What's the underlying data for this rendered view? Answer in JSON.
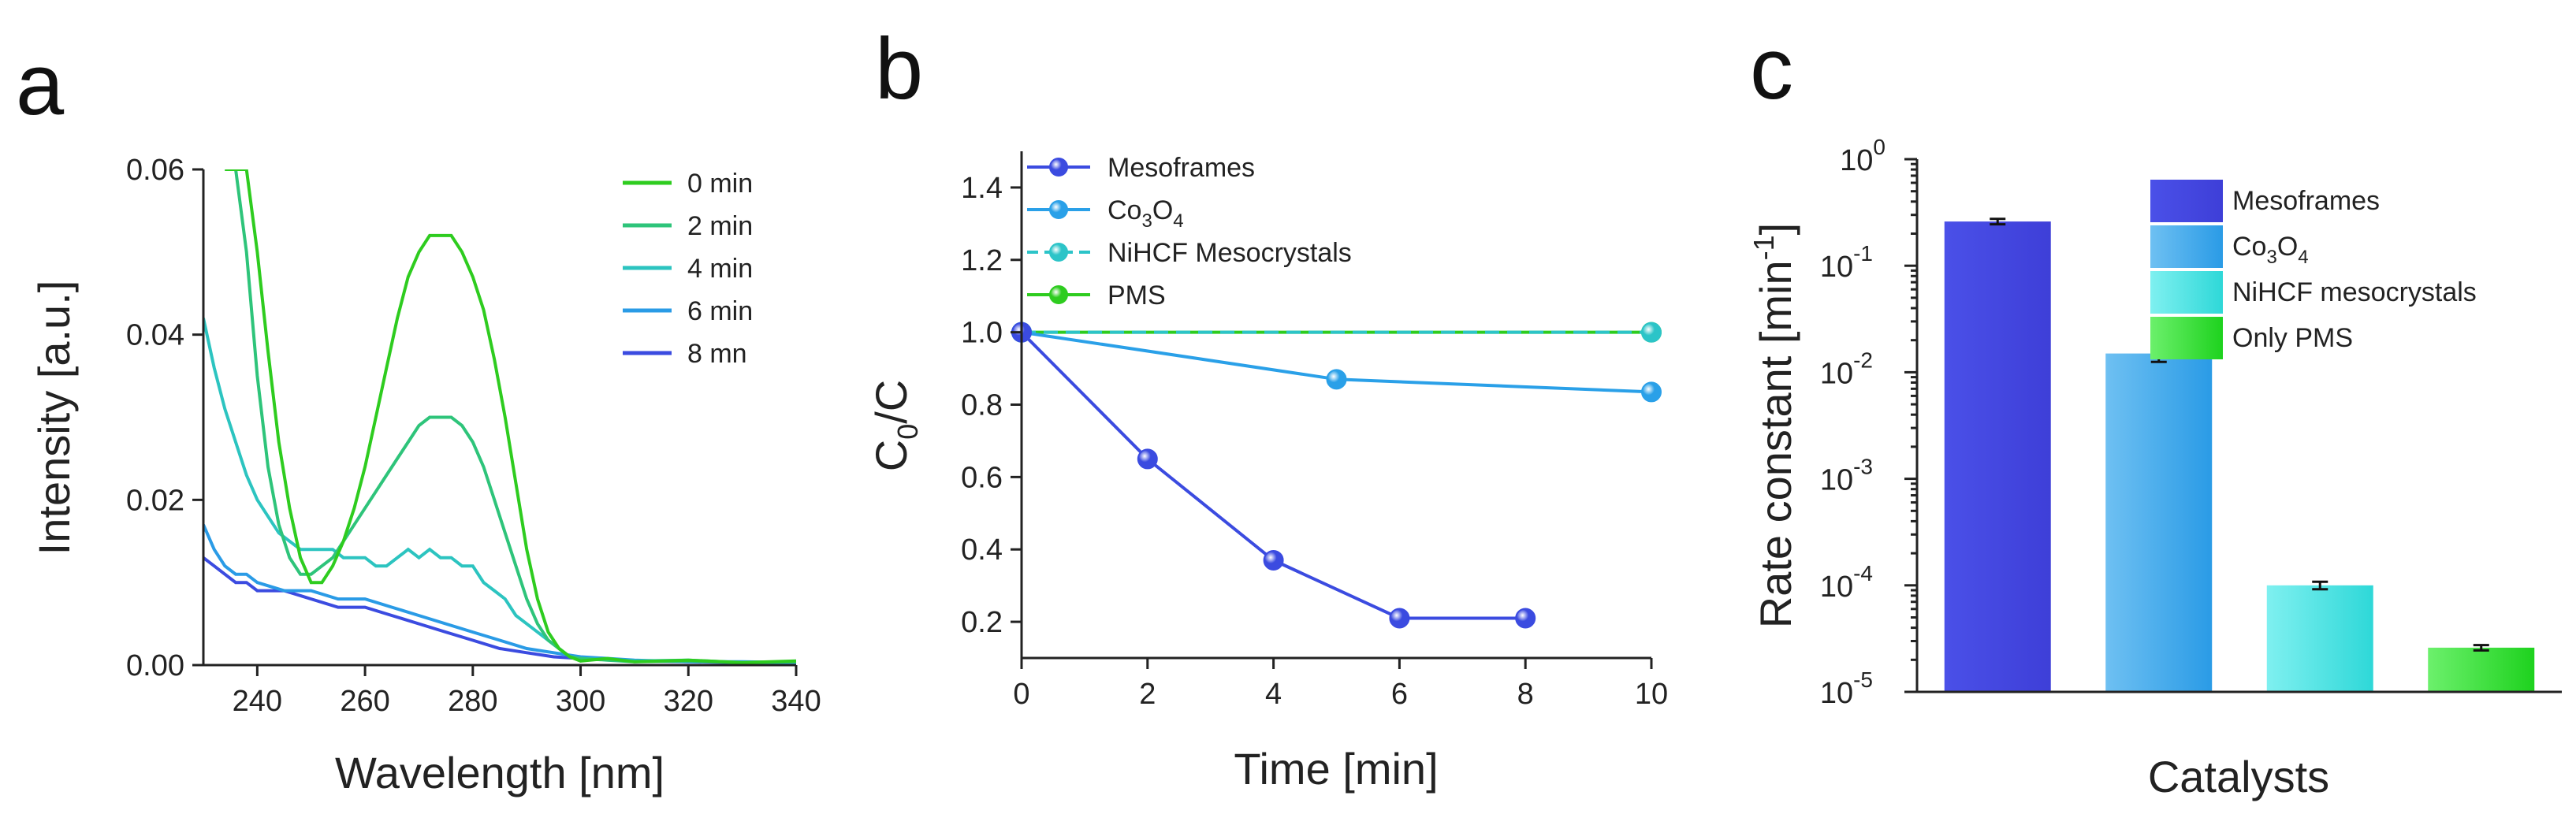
{
  "panel_labels": [
    "a",
    "b",
    "c"
  ],
  "chart_data": [
    {
      "type": "line",
      "panel": "a",
      "title": "",
      "xlabel": "Wavelength [nm]",
      "ylabel": "Intensity [a.u.]",
      "xlim": [
        230,
        340
      ],
      "ylim": [
        0,
        0.06
      ],
      "xticks": [
        "240",
        "260",
        "280",
        "300",
        "320",
        "340"
      ],
      "xtick_values": [
        240,
        260,
        280,
        300,
        320,
        340
      ],
      "yticks": [
        "0.00",
        "0.02",
        "0.04",
        "0.06"
      ],
      "ytick_values": [
        0,
        0.02,
        0.04,
        0.06
      ],
      "legend_position": "top-right",
      "series": [
        {
          "name": "0 min",
          "color": "#2ecc1f",
          "x": [
            234,
            236,
            238,
            240,
            242,
            244,
            246,
            248,
            250,
            252,
            254,
            256,
            258,
            260,
            262,
            264,
            266,
            268,
            270,
            272,
            274,
            276,
            278,
            280,
            282,
            284,
            286,
            288,
            290,
            292,
            294,
            296,
            298,
            300,
            305,
            310,
            320,
            330,
            340
          ],
          "y": [
            0.06,
            0.06,
            0.06,
            0.05,
            0.038,
            0.027,
            0.019,
            0.013,
            0.01,
            0.01,
            0.012,
            0.015,
            0.019,
            0.024,
            0.03,
            0.036,
            0.042,
            0.047,
            0.05,
            0.052,
            0.052,
            0.052,
            0.05,
            0.047,
            0.043,
            0.037,
            0.03,
            0.022,
            0.014,
            0.008,
            0.004,
            0.002,
            0.001,
            0.0005,
            0.0008,
            0.0004,
            0.0006,
            0.0003,
            0.0005
          ]
        },
        {
          "name": "2 min",
          "color": "#2ec47a",
          "x": [
            234,
            236,
            238,
            240,
            242,
            244,
            246,
            248,
            250,
            252,
            254,
            256,
            258,
            260,
            262,
            264,
            266,
            268,
            270,
            272,
            274,
            276,
            278,
            280,
            282,
            284,
            286,
            288,
            290,
            292,
            294,
            296,
            298,
            300,
            305,
            310,
            320,
            330,
            340
          ],
          "y": [
            0.06,
            0.06,
            0.05,
            0.035,
            0.024,
            0.017,
            0.013,
            0.011,
            0.011,
            0.012,
            0.013,
            0.015,
            0.017,
            0.019,
            0.021,
            0.023,
            0.025,
            0.027,
            0.029,
            0.03,
            0.03,
            0.03,
            0.029,
            0.027,
            0.024,
            0.02,
            0.016,
            0.012,
            0.008,
            0.005,
            0.003,
            0.002,
            0.001,
            0.0008,
            0.0006,
            0.0004,
            0.0005,
            0.0003,
            0.0004
          ]
        },
        {
          "name": "4 min",
          "color": "#2cc4c0",
          "x": [
            230,
            232,
            234,
            236,
            238,
            240,
            242,
            244,
            246,
            248,
            250,
            252,
            254,
            256,
            258,
            260,
            262,
            264,
            266,
            268,
            270,
            272,
            274,
            276,
            278,
            280,
            282,
            284,
            286,
            288,
            290,
            292,
            294,
            296,
            298,
            300,
            310,
            320,
            330,
            340
          ],
          "y": [
            0.042,
            0.036,
            0.031,
            0.027,
            0.023,
            0.02,
            0.018,
            0.016,
            0.015,
            0.014,
            0.014,
            0.014,
            0.014,
            0.013,
            0.013,
            0.013,
            0.012,
            0.012,
            0.013,
            0.014,
            0.013,
            0.014,
            0.013,
            0.013,
            0.012,
            0.012,
            0.01,
            0.009,
            0.008,
            0.006,
            0.005,
            0.004,
            0.003,
            0.002,
            0.001,
            0.0008,
            0.0005,
            0.0006,
            0.0003,
            0.0004
          ]
        },
        {
          "name": "6 min",
          "color": "#2a9be6",
          "x": [
            230,
            232,
            234,
            236,
            238,
            240,
            245,
            250,
            255,
            260,
            265,
            270,
            275,
            280,
            285,
            290,
            295,
            300,
            310,
            320,
            330,
            340
          ],
          "y": [
            0.017,
            0.014,
            0.012,
            0.011,
            0.011,
            0.01,
            0.009,
            0.009,
            0.008,
            0.008,
            0.007,
            0.006,
            0.005,
            0.004,
            0.003,
            0.002,
            0.0015,
            0.001,
            0.0006,
            0.0004,
            0.0004,
            0.0003
          ]
        },
        {
          "name": "8 mn",
          "color": "#3b4be0",
          "x": [
            230,
            232,
            234,
            236,
            238,
            240,
            245,
            250,
            255,
            260,
            265,
            270,
            275,
            280,
            285,
            290,
            295,
            300,
            310,
            320,
            330,
            340
          ],
          "y": [
            0.013,
            0.012,
            0.011,
            0.01,
            0.01,
            0.009,
            0.009,
            0.008,
            0.007,
            0.007,
            0.006,
            0.005,
            0.004,
            0.003,
            0.002,
            0.0015,
            0.001,
            0.0008,
            0.0005,
            0.0004,
            0.0003,
            0.0003
          ]
        }
      ]
    },
    {
      "type": "line",
      "panel": "b",
      "title": "",
      "xlabel": "Time [min]",
      "ylabel": "C0/C",
      "xlim": [
        0,
        10
      ],
      "ylim": [
        0.1,
        1.5
      ],
      "xticks": [
        "0",
        "2",
        "4",
        "6",
        "8",
        "10"
      ],
      "xtick_values": [
        0,
        2,
        4,
        6,
        8,
        10
      ],
      "yticks": [
        "0.2",
        "0.4",
        "0.6",
        "0.8",
        "1.0",
        "1.2",
        "1.4"
      ],
      "ytick_values": [
        0.2,
        0.4,
        0.6,
        0.8,
        1.0,
        1.2,
        1.4
      ],
      "legend_position": "top-left",
      "series": [
        {
          "name": "Mesoframes",
          "color": "#3b4be0",
          "dash": false,
          "x": [
            0,
            2,
            4,
            6,
            8
          ],
          "y": [
            1.0,
            0.65,
            0.37,
            0.21,
            0.21
          ]
        },
        {
          "name": "Co3O4",
          "color": "#2aa0e8",
          "dash": false,
          "x": [
            0,
            5,
            10
          ],
          "y": [
            1.0,
            0.87,
            0.835
          ]
        },
        {
          "name": "NiHCF Mesocrystals",
          "color": "#2cc4c8",
          "dash": true,
          "x": [
            0,
            10
          ],
          "y": [
            1.0,
            1.0
          ]
        },
        {
          "name": "PMS",
          "color": "#2ecc1f",
          "dash": false,
          "x": [
            0,
            10
          ],
          "y": [
            1.0,
            1.0
          ]
        }
      ]
    },
    {
      "type": "bar",
      "panel": "c",
      "scale": "log",
      "title": "",
      "xlabel": "Catalysts",
      "ylabel": "Rate constant [min⁻¹]",
      "ylim": [
        1e-05,
        1
      ],
      "yticks": [
        {
          "base": "10",
          "exp": "0",
          "value": 1
        },
        {
          "base": "10",
          "exp": "-1",
          "value": 0.1
        },
        {
          "base": "10",
          "exp": "-2",
          "value": 0.01
        },
        {
          "base": "10",
          "exp": "-3",
          "value": 0.001
        },
        {
          "base": "10",
          "exp": "-4",
          "value": 0.0001
        },
        {
          "base": "10",
          "exp": "-5",
          "value": 1e-05
        }
      ],
      "legend_position": "top-right",
      "categories": [
        "Mesoframes",
        "Co3O4",
        "NiHCF mesocrystals",
        "Only PMS"
      ],
      "values": [
        0.26,
        0.015,
        0.0001,
        2.6e-05
      ],
      "errors_low": [
        0.245,
        0.0125,
        9.2e-05,
        2.45e-05
      ],
      "errors_high": [
        0.275,
        0.0175,
        0.000108,
        2.75e-05
      ],
      "colors": [
        [
          "#4a50e8",
          "#3e3fd8"
        ],
        [
          "#6ec0f2",
          "#2a9be6"
        ],
        [
          "#7ff0f0",
          "#2ed8d8"
        ],
        [
          "#6cf06c",
          "#1ed21e"
        ]
      ]
    }
  ]
}
